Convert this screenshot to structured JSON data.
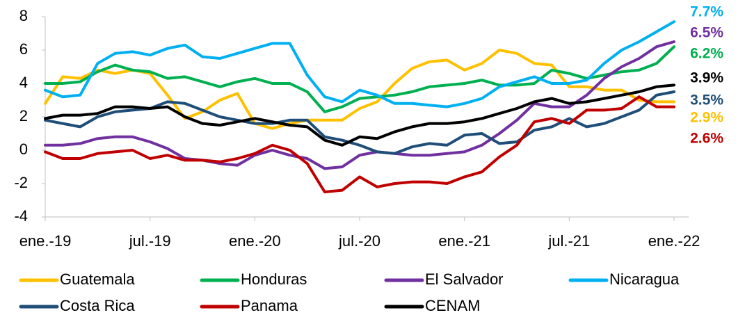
{
  "chart_data": {
    "type": "line",
    "categories": [
      "ene.-19",
      null,
      null,
      null,
      null,
      null,
      "jul.-19",
      null,
      null,
      null,
      null,
      null,
      "ene.-20",
      null,
      null,
      null,
      null,
      null,
      "jul.-20",
      null,
      null,
      null,
      null,
      null,
      "ene.-21",
      null,
      null,
      null,
      null,
      null,
      "jul.-21",
      null,
      null,
      null,
      null,
      null,
      "ene.-22"
    ],
    "ylim": [
      -4,
      8
    ],
    "yticks": [
      -4,
      -2,
      0,
      2,
      4,
      6,
      8
    ],
    "series": [
      {
        "name": "Guatemala",
        "color": "#FFC000",
        "values": [
          2.8,
          4.4,
          4.3,
          4.8,
          4.6,
          4.8,
          4.6,
          3.3,
          1.9,
          2.3,
          3.0,
          3.4,
          1.6,
          1.3,
          1.6,
          1.8,
          1.8,
          1.8,
          2.5,
          2.9,
          4.0,
          4.9,
          5.3,
          5.4,
          4.8,
          5.2,
          6.0,
          5.8,
          5.2,
          5.1,
          3.8,
          3.8,
          3.6,
          3.6,
          3.0,
          2.9,
          2.9
        ],
        "value_labels": [
          null,
          null,
          null,
          null,
          null,
          null,
          null,
          null,
          null,
          null,
          null,
          null,
          null,
          null,
          null,
          null,
          null,
          null,
          null,
          null,
          null,
          null,
          null,
          null,
          null,
          null,
          null,
          null,
          null,
          null,
          null,
          null,
          null,
          null,
          null,
          null,
          "2.9%"
        ]
      },
      {
        "name": "Honduras",
        "color": "#00B050",
        "values": [
          4.0,
          4.0,
          4.1,
          4.7,
          5.1,
          4.8,
          4.7,
          4.3,
          4.4,
          4.1,
          3.8,
          4.1,
          4.3,
          4.0,
          4.0,
          3.5,
          2.3,
          2.6,
          3.1,
          3.2,
          3.3,
          3.5,
          3.8,
          3.9,
          4.0,
          4.2,
          3.9,
          3.9,
          4.0,
          4.8,
          4.6,
          4.3,
          4.5,
          4.7,
          4.8,
          5.2,
          6.2
        ],
        "value_labels": [
          null,
          null,
          null,
          null,
          null,
          null,
          null,
          null,
          null,
          null,
          null,
          null,
          null,
          null,
          null,
          null,
          null,
          null,
          null,
          null,
          null,
          null,
          null,
          null,
          null,
          null,
          null,
          null,
          null,
          null,
          null,
          null,
          null,
          null,
          null,
          null,
          "6.2%"
        ]
      },
      {
        "name": "El Salvador",
        "color": "#7030A0",
        "values": [
          0.3,
          0.3,
          0.4,
          0.7,
          0.8,
          0.8,
          0.5,
          0.1,
          -0.5,
          -0.6,
          -0.8,
          -0.9,
          -0.3,
          0.0,
          -0.3,
          -0.5,
          -1.1,
          -1.0,
          -0.3,
          -0.1,
          -0.2,
          -0.3,
          -0.3,
          -0.2,
          -0.1,
          0.3,
          1.0,
          1.8,
          2.8,
          2.6,
          2.6,
          3.3,
          4.3,
          5.0,
          5.5,
          6.2,
          6.5
        ],
        "value_labels": [
          null,
          null,
          null,
          null,
          null,
          null,
          null,
          null,
          null,
          null,
          null,
          null,
          null,
          null,
          null,
          null,
          null,
          null,
          null,
          null,
          null,
          null,
          null,
          null,
          null,
          null,
          null,
          null,
          null,
          null,
          null,
          null,
          null,
          null,
          null,
          null,
          "6.5%"
        ]
      },
      {
        "name": "Nicaragua",
        "color": "#00B0F0",
        "values": [
          3.6,
          3.2,
          3.3,
          5.2,
          5.8,
          5.9,
          5.7,
          6.1,
          6.3,
          5.6,
          5.5,
          5.8,
          6.1,
          6.4,
          6.4,
          4.5,
          3.2,
          2.9,
          3.6,
          3.3,
          2.8,
          2.8,
          2.7,
          2.6,
          2.8,
          3.1,
          3.8,
          4.1,
          4.4,
          4.0,
          4.0,
          4.2,
          5.2,
          6.0,
          6.5,
          7.1,
          7.7
        ],
        "value_labels": [
          null,
          null,
          null,
          null,
          null,
          null,
          null,
          null,
          null,
          null,
          null,
          null,
          null,
          null,
          null,
          null,
          null,
          null,
          null,
          null,
          null,
          null,
          null,
          null,
          null,
          null,
          null,
          null,
          null,
          null,
          null,
          null,
          null,
          null,
          null,
          null,
          "7.7%"
        ]
      },
      {
        "name": "Costa Rica",
        "color": "#1F4E79",
        "values": [
          1.8,
          1.6,
          1.4,
          2.0,
          2.3,
          2.4,
          2.5,
          2.9,
          2.8,
          2.4,
          2.0,
          1.8,
          1.6,
          1.6,
          1.8,
          1.8,
          0.8,
          0.6,
          0.3,
          -0.1,
          -0.2,
          0.2,
          0.4,
          0.3,
          0.9,
          1.0,
          0.4,
          0.5,
          1.2,
          1.4,
          1.9,
          1.4,
          1.6,
          2.0,
          2.4,
          3.3,
          3.5
        ],
        "value_labels": [
          null,
          null,
          null,
          null,
          null,
          null,
          null,
          null,
          null,
          null,
          null,
          null,
          null,
          null,
          null,
          null,
          null,
          null,
          null,
          null,
          null,
          null,
          null,
          null,
          null,
          null,
          null,
          null,
          null,
          null,
          null,
          null,
          null,
          null,
          null,
          null,
          "3.5%"
        ]
      },
      {
        "name": "Panama",
        "color": "#C00000",
        "values": [
          -0.1,
          -0.5,
          -0.5,
          -0.2,
          -0.1,
          0.0,
          -0.5,
          -0.3,
          -0.6,
          -0.6,
          -0.7,
          -0.5,
          -0.2,
          0.3,
          0.0,
          -0.8,
          -2.5,
          -2.4,
          -1.6,
          -2.2,
          -2.0,
          -1.9,
          -1.9,
          -2.0,
          -1.6,
          -1.3,
          -0.4,
          0.3,
          1.7,
          1.9,
          1.6,
          2.4,
          2.4,
          2.5,
          3.2,
          2.6,
          2.6
        ],
        "value_labels": [
          null,
          null,
          null,
          null,
          null,
          null,
          null,
          null,
          null,
          null,
          null,
          null,
          null,
          null,
          null,
          null,
          null,
          null,
          null,
          null,
          null,
          null,
          null,
          null,
          null,
          null,
          null,
          null,
          null,
          null,
          null,
          null,
          null,
          null,
          null,
          null,
          "2.6%"
        ]
      },
      {
        "name": "CENAM",
        "color": "#000000",
        "values": [
          1.9,
          2.1,
          2.1,
          2.2,
          2.6,
          2.6,
          2.5,
          2.6,
          2.0,
          1.6,
          1.5,
          1.7,
          1.9,
          1.7,
          1.5,
          1.4,
          0.6,
          0.3,
          0.8,
          0.7,
          1.1,
          1.4,
          1.6,
          1.6,
          1.7,
          1.9,
          2.2,
          2.5,
          2.9,
          3.1,
          2.8,
          2.9,
          3.1,
          3.3,
          3.5,
          3.8,
          3.9
        ],
        "value_labels": [
          null,
          null,
          null,
          null,
          null,
          null,
          null,
          null,
          null,
          null,
          null,
          null,
          null,
          null,
          null,
          null,
          null,
          null,
          null,
          null,
          null,
          null,
          null,
          null,
          null,
          null,
          null,
          null,
          null,
          null,
          null,
          null,
          null,
          null,
          null,
          null,
          "3.9%"
        ]
      }
    ]
  }
}
